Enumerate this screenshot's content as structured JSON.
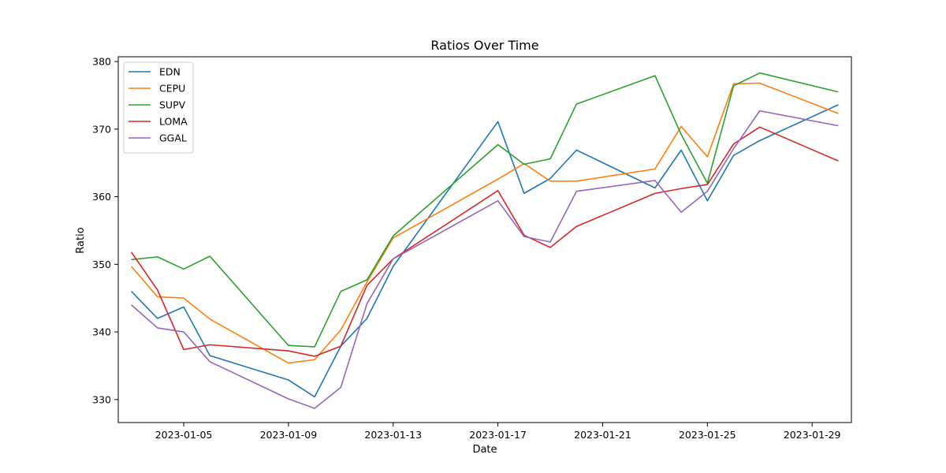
{
  "chart_data": {
    "type": "line",
    "title": "Ratios Over Time",
    "xlabel": "Date",
    "ylabel": "Ratio",
    "x": [
      "2023-01-03",
      "2023-01-04",
      "2023-01-05",
      "2023-01-06",
      "2023-01-09",
      "2023-01-10",
      "2023-01-11",
      "2023-01-12",
      "2023-01-13",
      "2023-01-17",
      "2023-01-18",
      "2023-01-19",
      "2023-01-20",
      "2023-01-23",
      "2023-01-24",
      "2023-01-25",
      "2023-01-26",
      "2023-01-27",
      "2023-01-30"
    ],
    "xlim": [
      "2023-01-02T12:00",
      "2023-01-30T12:00"
    ],
    "ylim": [
      326.6,
      380.7
    ],
    "xticks": [
      {
        "date": "2023-01-05",
        "label": "2023-01-05"
      },
      {
        "date": "2023-01-09",
        "label": "2023-01-09"
      },
      {
        "date": "2023-01-13",
        "label": "2023-01-13"
      },
      {
        "date": "2023-01-17",
        "label": "2023-01-17"
      },
      {
        "date": "2023-01-21",
        "label": "2023-01-21"
      },
      {
        "date": "2023-01-25",
        "label": "2023-01-25"
      },
      {
        "date": "2023-01-29",
        "label": "2023-01-29"
      }
    ],
    "yticks": [
      330,
      340,
      350,
      360,
      370,
      380
    ],
    "grid": false,
    "legend": "upper-left",
    "series": [
      {
        "name": "EDN",
        "color": "#1f77b4",
        "values": [
          346.0,
          342.0,
          343.7,
          336.5,
          332.9,
          330.4,
          337.9,
          342.0,
          349.7,
          371.1,
          360.5,
          362.7,
          366.9,
          361.3,
          366.9,
          359.4,
          366.1,
          368.3,
          373.6
        ]
      },
      {
        "name": "CEPU",
        "color": "#ff7f0e",
        "values": [
          349.7,
          345.2,
          345.0,
          341.9,
          335.4,
          335.9,
          340.3,
          347.4,
          353.9,
          362.6,
          364.9,
          362.3,
          362.3,
          364.1,
          370.4,
          365.9,
          376.7,
          376.8,
          372.3
        ]
      },
      {
        "name": "SUPV",
        "color": "#2ca02c",
        "values": [
          350.7,
          351.1,
          349.3,
          351.2,
          338.0,
          337.8,
          346.0,
          347.7,
          354.2,
          367.7,
          364.8,
          365.6,
          373.7,
          377.9,
          369.2,
          362.0,
          376.4,
          378.3,
          375.5
        ]
      },
      {
        "name": "LOMA",
        "color": "#d62728",
        "values": [
          351.8,
          346.2,
          337.4,
          338.1,
          337.2,
          336.4,
          337.9,
          346.9,
          350.8,
          360.9,
          354.3,
          352.5,
          355.6,
          360.5,
          361.2,
          361.8,
          367.8,
          370.3,
          365.3
        ]
      },
      {
        "name": "GGAL",
        "color": "#9467bd",
        "values": [
          344.0,
          340.6,
          340.0,
          335.6,
          330.1,
          328.7,
          331.8,
          344.2,
          350.8,
          359.4,
          354.1,
          353.3,
          360.8,
          362.4,
          357.7,
          360.8,
          367.1,
          372.7,
          370.5
        ]
      }
    ]
  }
}
